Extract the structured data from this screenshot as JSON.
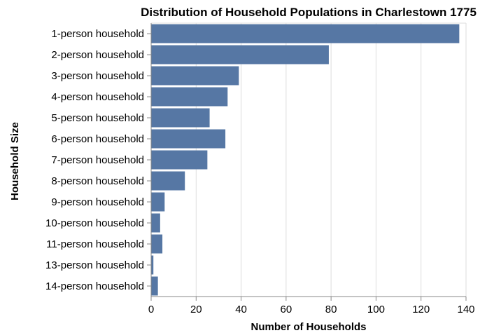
{
  "chart_data": {
    "type": "bar",
    "orientation": "horizontal",
    "title": "Distribution of Household Populations in Charlestown 1775",
    "xlabel": "Number of Households",
    "ylabel": "Household Size",
    "categories": [
      "1-person household",
      "2-person household",
      "3-person household",
      "4-person household",
      "5-person household",
      "6-person household",
      "7-person household",
      "8-person household",
      "9-person household",
      "10-person household",
      "11-person household",
      "13-person household",
      "14-person household"
    ],
    "values": [
      137,
      79,
      39,
      34,
      26,
      33,
      25,
      15,
      6,
      4,
      5,
      1,
      3
    ],
    "xlim": [
      0,
      140
    ],
    "xticks": [
      0,
      20,
      40,
      60,
      80,
      100,
      120,
      140
    ],
    "grid": true,
    "bar_color": "#5677a4",
    "grid_color": "#dddddd",
    "axis_color": "#888888"
  }
}
